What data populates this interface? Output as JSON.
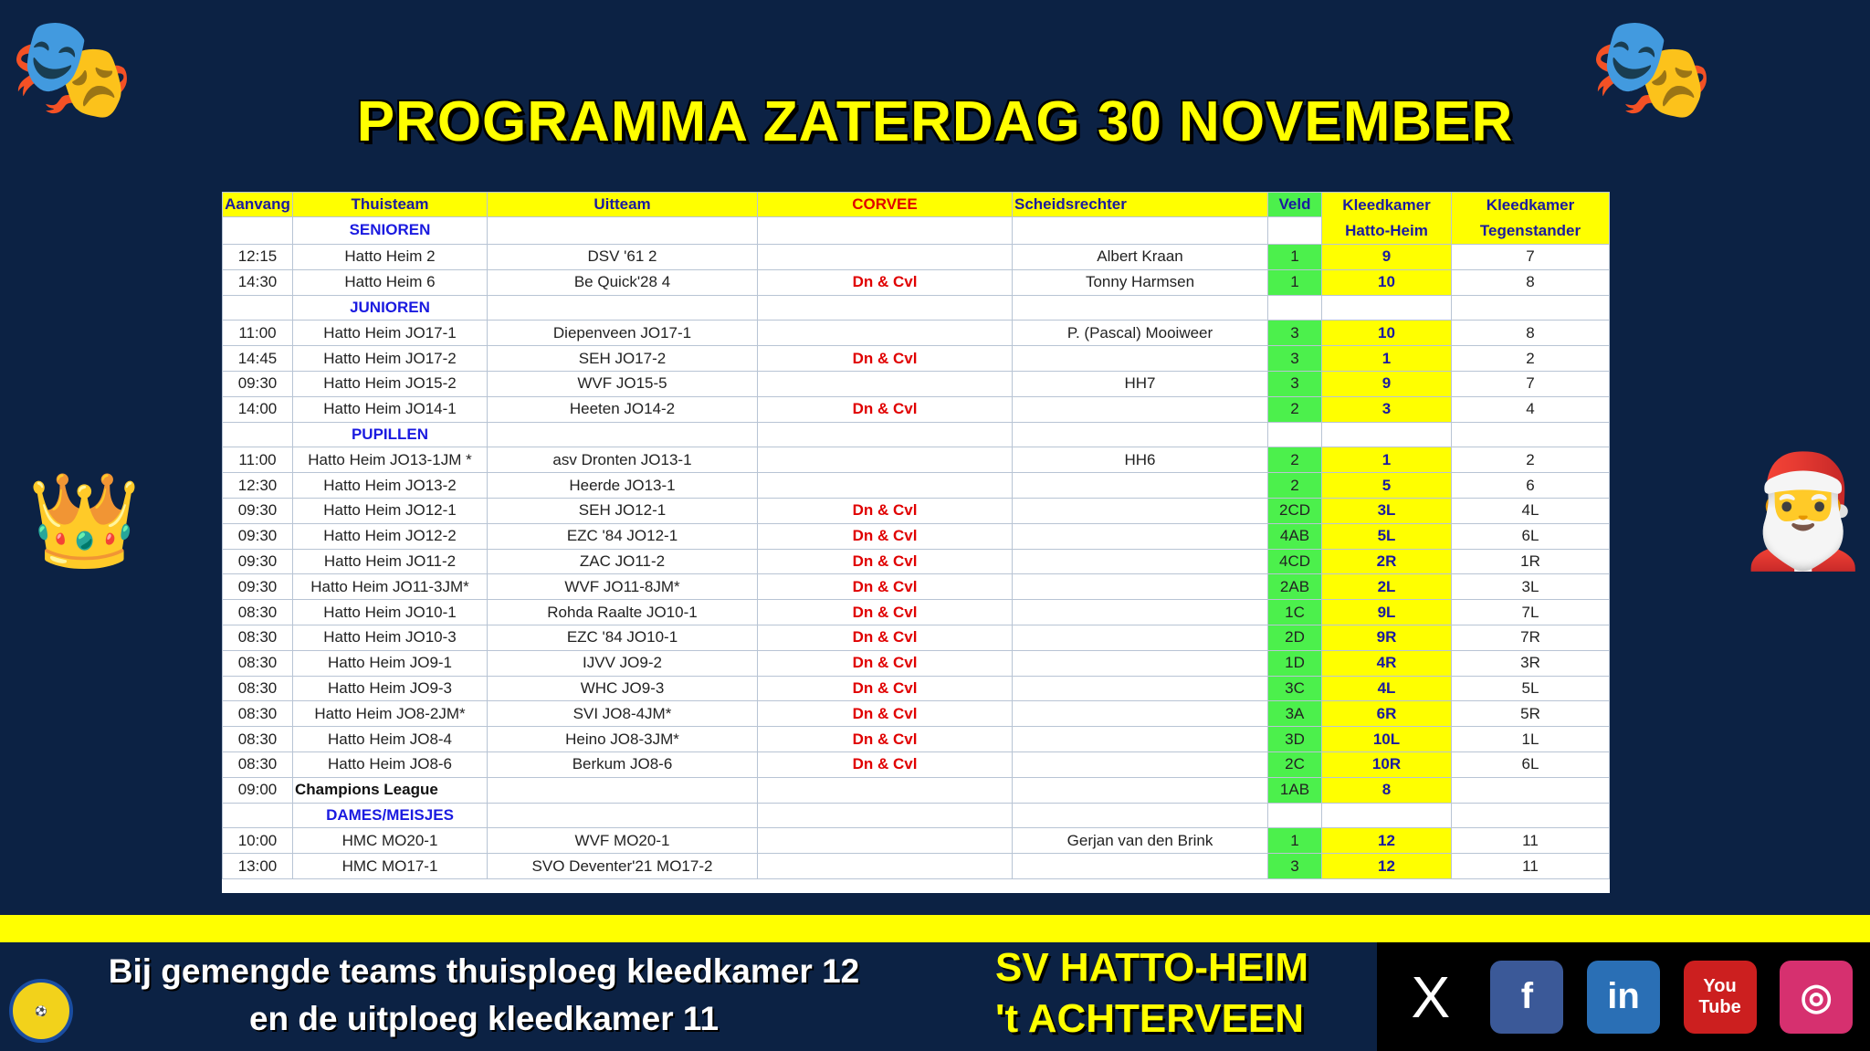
{
  "title": "PROGRAMMA ZATERDAG 30 NOVEMBER",
  "headers": {
    "aanvang": "Aanvang",
    "thuisteam": "Thuisteam",
    "uitteam": "Uitteam",
    "corvee": "CORVEE",
    "scheidsrechter": "Scheidsrechter",
    "veld": "Veld",
    "kk_home_1": "Kleedkamer",
    "kk_home_2": "Hatto-Heim",
    "kk_away_1": "Kleedkamer",
    "kk_away_2": "Tegenstander"
  },
  "first_section": "SENIOREN",
  "rows": [
    {
      "t": "12:15",
      "h": "Hatto Heim 2",
      "a": "DSV '61 2",
      "c": "",
      "r": "Albert Kraan",
      "v": "1",
      "kh": "9",
      "ka": "7"
    },
    {
      "t": "14:30",
      "h": "Hatto Heim 6",
      "a": "Be Quick'28 4",
      "c": "Dn & Cvl",
      "r": "Tonny Harmsen",
      "v": "1",
      "kh": "10",
      "ka": "8"
    },
    {
      "section": "JUNIOREN"
    },
    {
      "t": "11:00",
      "h": "Hatto Heim JO17-1",
      "a": "Diepenveen JO17-1",
      "c": "",
      "r": "P. (Pascal) Mooiweer",
      "v": "3",
      "kh": "10",
      "ka": "8"
    },
    {
      "t": "14:45",
      "h": "Hatto Heim JO17-2",
      "a": "SEH JO17-2",
      "c": "Dn & Cvl",
      "r": "",
      "v": "3",
      "kh": "1",
      "ka": "2"
    },
    {
      "t": "09:30",
      "h": "Hatto Heim JO15-2",
      "a": "WVF JO15-5",
      "c": "",
      "r": "HH7",
      "v": "3",
      "kh": "9",
      "ka": "7"
    },
    {
      "t": "14:00",
      "h": "Hatto Heim JO14-1",
      "a": "Heeten JO14-2",
      "c": "Dn & Cvl",
      "r": "",
      "v": "2",
      "kh": "3",
      "ka": "4"
    },
    {
      "section": "PUPILLEN"
    },
    {
      "t": "11:00",
      "h": "Hatto Heim JO13-1JM *",
      "a": "asv Dronten JO13-1",
      "c": "",
      "r": "HH6",
      "v": "2",
      "kh": "1",
      "ka": "2"
    },
    {
      "t": "12:30",
      "h": "Hatto Heim JO13-2",
      "a": "Heerde JO13-1",
      "c": "",
      "r": "",
      "v": "2",
      "kh": "5",
      "ka": "6"
    },
    {
      "t": "09:30",
      "h": "Hatto Heim JO12-1",
      "a": "SEH JO12-1",
      "c": "Dn & Cvl",
      "r": "",
      "v": "2CD",
      "kh": "3L",
      "ka": "4L"
    },
    {
      "t": "09:30",
      "h": "Hatto Heim JO12-2",
      "a": "EZC '84 JO12-1",
      "c": "Dn & Cvl",
      "r": "",
      "v": "4AB",
      "kh": "5L",
      "ka": "6L"
    },
    {
      "t": "09:30",
      "h": "Hatto Heim JO11-2",
      "a": "ZAC JO11-2",
      "c": "Dn & Cvl",
      "r": "",
      "v": "4CD",
      "kh": "2R",
      "ka": "1R"
    },
    {
      "t": "09:30",
      "h": "Hatto Heim JO11-3JM*",
      "a": "WVF JO11-8JM*",
      "c": "Dn & Cvl",
      "r": "",
      "v": "2AB",
      "kh": "2L",
      "ka": "3L"
    },
    {
      "t": "08:30",
      "h": "Hatto Heim JO10-1",
      "a": "Rohda Raalte JO10-1",
      "c": "Dn & Cvl",
      "r": "",
      "v": "1C",
      "kh": "9L",
      "ka": "7L"
    },
    {
      "t": "08:30",
      "h": "Hatto Heim JO10-3",
      "a": "EZC '84 JO10-1",
      "c": "Dn & Cvl",
      "r": "",
      "v": "2D",
      "kh": "9R",
      "ka": "7R"
    },
    {
      "t": "08:30",
      "h": "Hatto Heim JO9-1",
      "a": "IJVV JO9-2",
      "c": "Dn & Cvl",
      "r": "",
      "v": "1D",
      "kh": "4R",
      "ka": "3R"
    },
    {
      "t": "08:30",
      "h": "Hatto Heim JO9-3",
      "a": "WHC JO9-3",
      "c": "Dn & Cvl",
      "r": "",
      "v": "3C",
      "kh": "4L",
      "ka": "5L"
    },
    {
      "t": "08:30",
      "h": "Hatto Heim JO8-2JM*",
      "a": "SVI JO8-4JM*",
      "c": "Dn & Cvl",
      "r": "",
      "v": "3A",
      "kh": "6R",
      "ka": "5R"
    },
    {
      "t": "08:30",
      "h": "Hatto Heim JO8-4",
      "a": "Heino JO8-3JM*",
      "c": "Dn & Cvl",
      "r": "",
      "v": "3D",
      "kh": "10L",
      "ka": "1L"
    },
    {
      "t": "08:30",
      "h": "Hatto Heim JO8-6",
      "a": "Berkum JO8-6",
      "c": "Dn & Cvl",
      "r": "",
      "v": "2C",
      "kh": "10R",
      "ka": "6L"
    },
    {
      "t": "09:00",
      "h": "Champions League",
      "a": "",
      "c": "",
      "r": "",
      "v": "1AB",
      "kh": "8",
      "ka": "",
      "special": true
    },
    {
      "section": "DAMES/MEISJES"
    },
    {
      "t": "10:00",
      "h": "HMC MO20-1",
      "a": "WVF MO20-1",
      "c": "",
      "r": "Gerjan van den Brink",
      "v": "1",
      "kh": "12",
      "ka": "11"
    },
    {
      "t": "13:00",
      "h": "HMC MO17-1",
      "a": "SVO Deventer'21 MO17-2",
      "c": "",
      "r": "",
      "v": "3",
      "kh": "12",
      "ka": "11"
    }
  ],
  "footer": {
    "note_1": "Bij gemengde teams thuisploeg kleedkamer 12",
    "note_2": "en de uitploeg kleedkamer 11",
    "club_1": "SV HATTO-HEIM",
    "club_2": "'t ACHTERVEEN",
    "logo_text": "HATTO-HEIM"
  },
  "social": [
    {
      "icon": "x-icon",
      "glyph": "X",
      "color": "#000000"
    },
    {
      "icon": "facebook-icon",
      "glyph": "f",
      "color": "#3b5998"
    },
    {
      "icon": "linkedin-icon",
      "glyph": "in",
      "color": "#2a6fb5"
    },
    {
      "icon": "youtube-icon",
      "glyph": "You Tube",
      "color": "#cc1f1f"
    },
    {
      "icon": "instagram-icon",
      "glyph": "◎",
      "color": "#d6306f"
    }
  ],
  "colors": {
    "background": "#0c2244",
    "header": "#ffff00",
    "veld": "#4cf04c",
    "corvee": "#e00000",
    "section": "#1a1ae0"
  }
}
